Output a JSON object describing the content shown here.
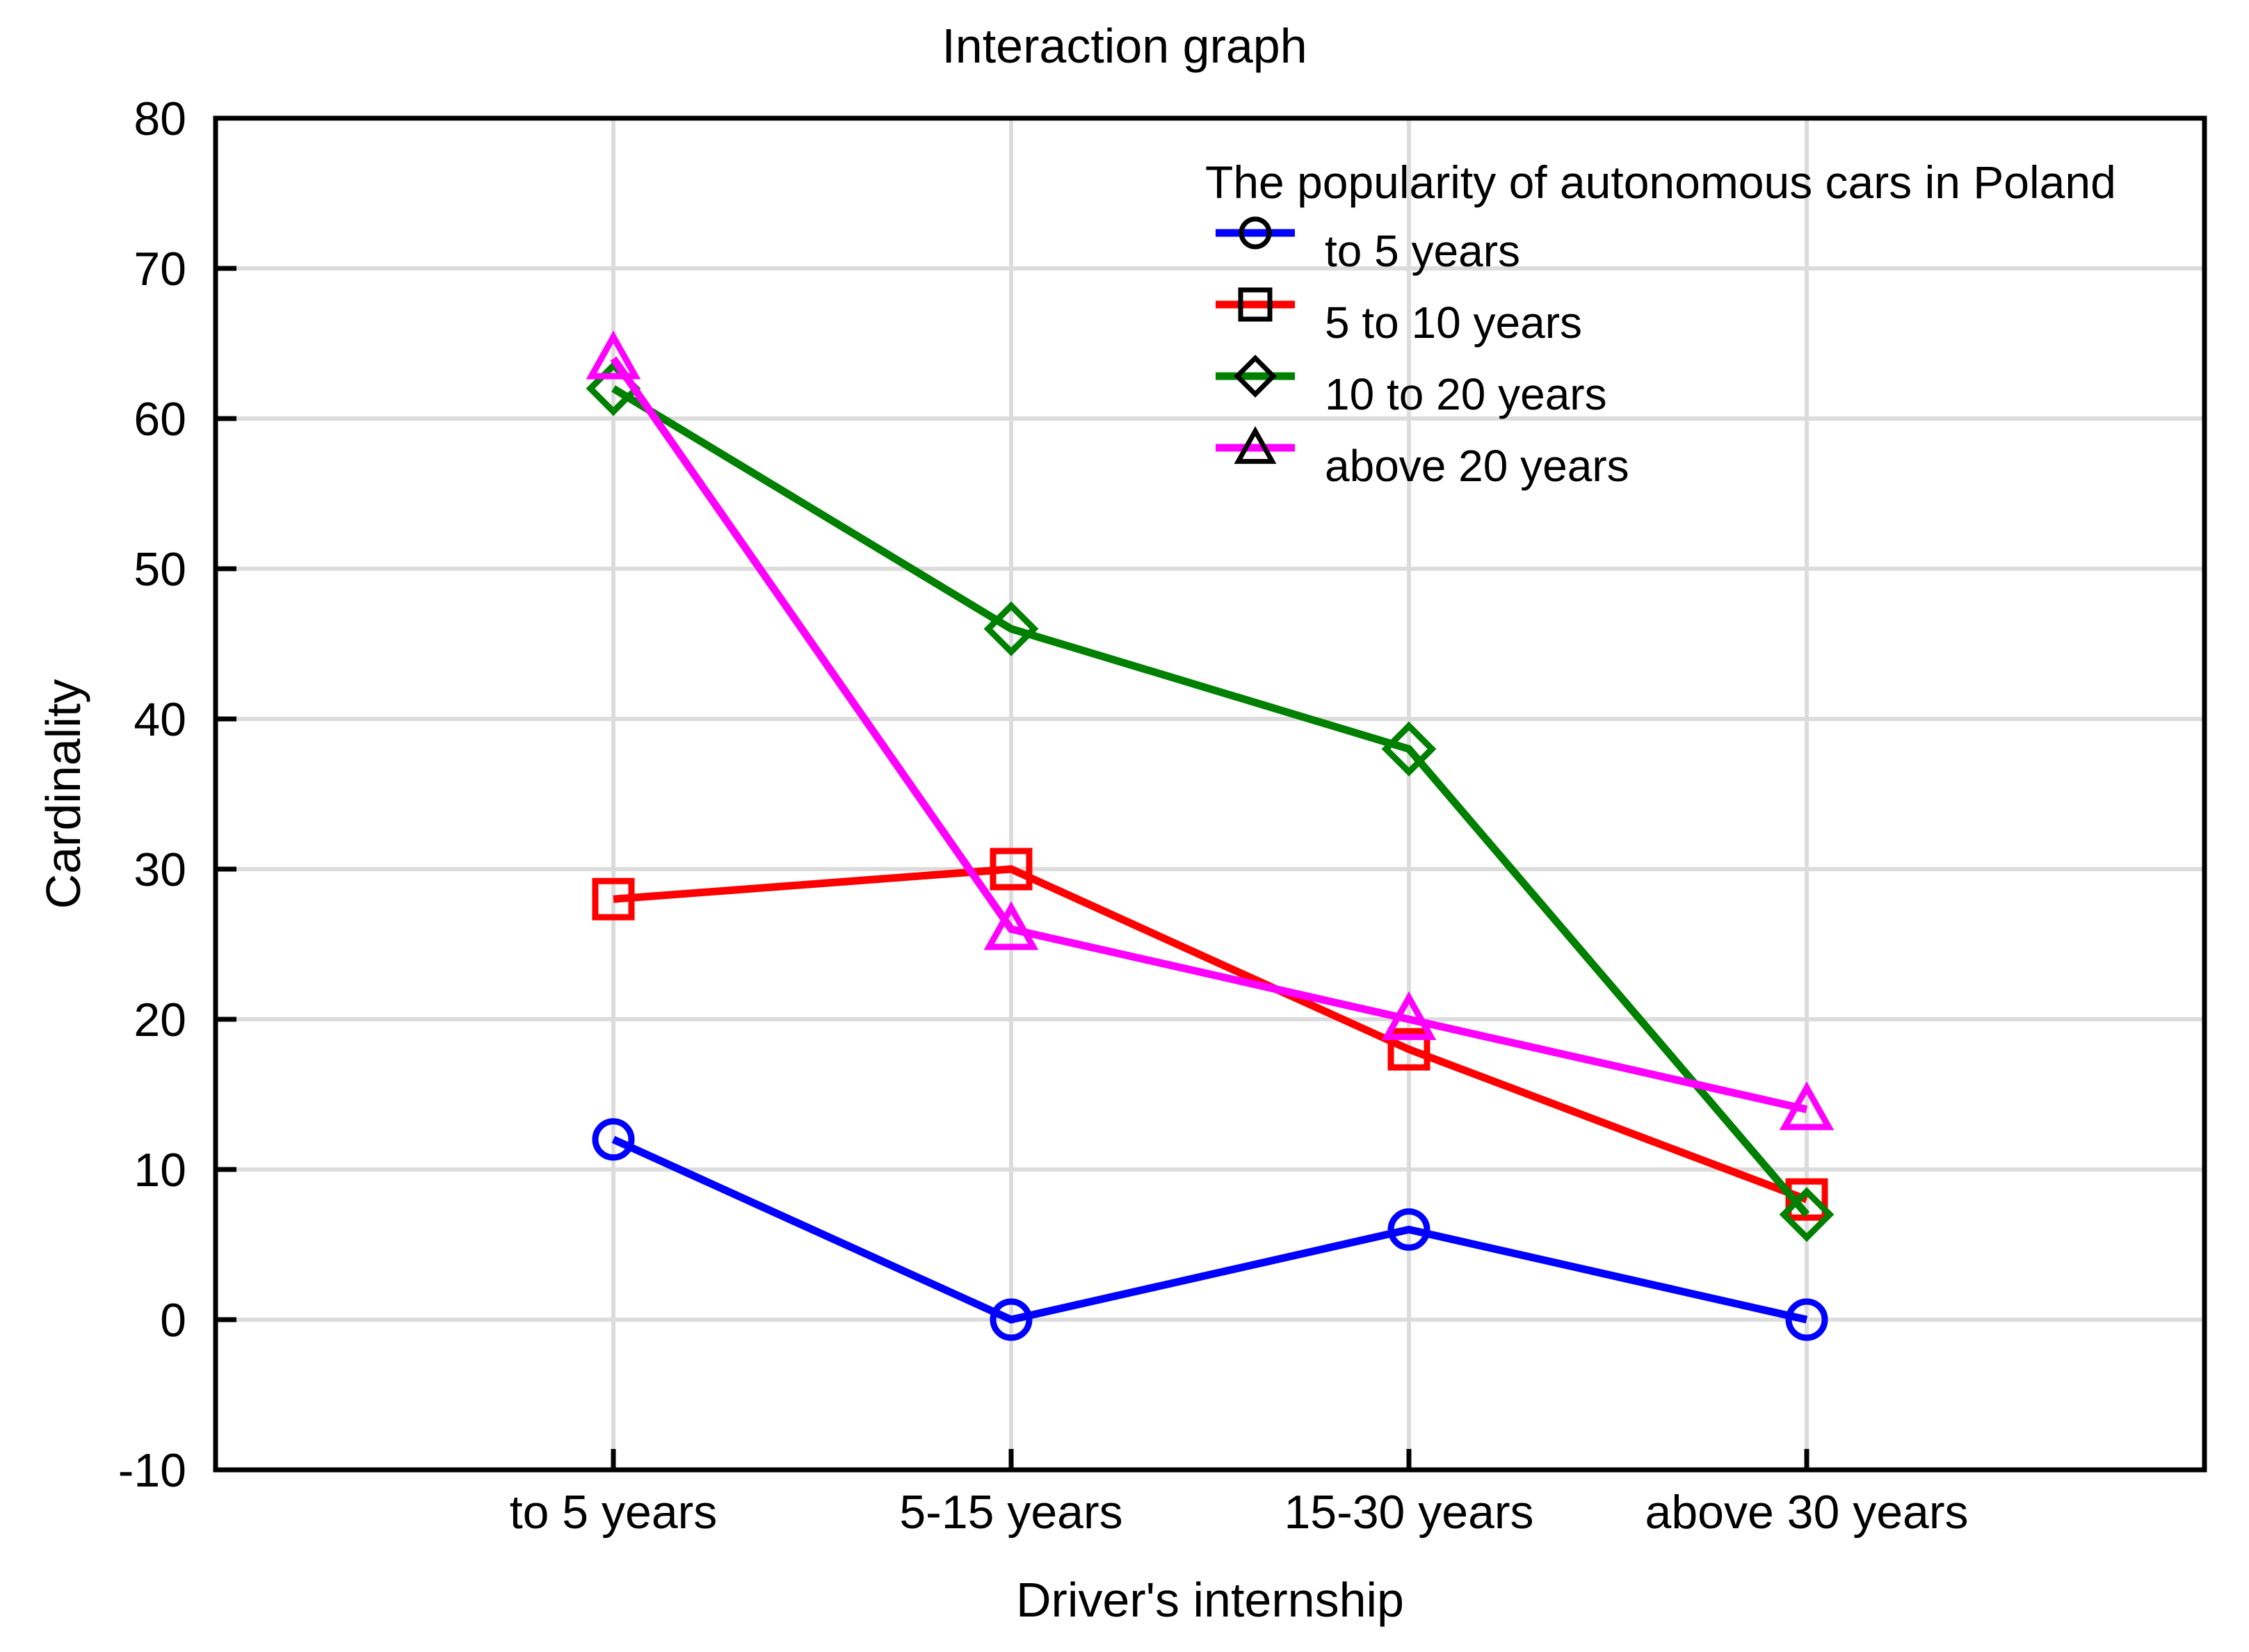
{
  "title": "Interaction graph",
  "chart_data": {
    "type": "line",
    "title": "Interaction graph",
    "xlabel": "Driver's internship",
    "ylabel": "Cardinality",
    "categories": [
      "to 5 years",
      "5-15 years",
      "15-30 years",
      "above 30 years"
    ],
    "series": [
      {
        "name": "to 5 years",
        "values": [
          12,
          0,
          6,
          0
        ],
        "color": "#0000ff",
        "marker": "circle"
      },
      {
        "name": "5 to 10 years",
        "values": [
          28,
          30,
          18,
          8
        ],
        "color": "#ff0000",
        "marker": "square"
      },
      {
        "name": "10 to 20 years",
        "values": [
          62,
          46,
          38,
          7
        ],
        "color": "#008000",
        "marker": "diamond"
      },
      {
        "name": "above 20 years",
        "values": [
          64,
          26,
          20,
          14
        ],
        "color": "#ff00ff",
        "marker": "triangle"
      }
    ],
    "ylim": [
      -10,
      80
    ],
    "yticks": [
      -10,
      0,
      10,
      20,
      30,
      40,
      50,
      60,
      70,
      80
    ],
    "grid": true,
    "grid_color": "#dcdcdc",
    "axis_color": "#000000",
    "marker_style": "hollow",
    "legend_title": "The popularity of autonomous cars in Poland",
    "legend_position": "upper-right-inside",
    "legend_marker_color": "#000000"
  }
}
